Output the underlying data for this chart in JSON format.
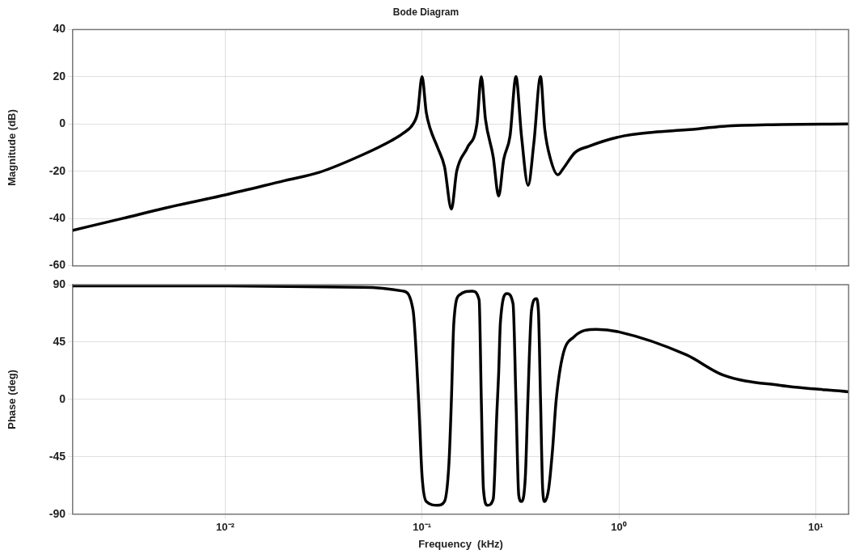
{
  "chart_data": [
    {
      "type": "line",
      "title": "Bode Diagram",
      "ylabel": "Magnitude (dB)",
      "xlim": [
        0.00168,
        14.7
      ],
      "xticks": [
        {
          "value": 0.01,
          "label": null
        },
        {
          "value": 0.1,
          "label": null
        },
        {
          "value": 1,
          "label": null
        },
        {
          "value": 10,
          "label": null
        }
      ],
      "ylim": [
        -60,
        40
      ],
      "yticks": [
        -60,
        -40,
        -20,
        0,
        20,
        40
      ],
      "log": "x",
      "grid": true,
      "marker": "none",
      "line_style": "solid",
      "tick_labels": "y",
      "series": [
        {
          "color": "#000000",
          "x": [
            0.00168,
            0.003,
            0.005,
            0.01,
            0.02,
            0.03,
            0.05,
            0.07,
            0.08,
            0.09,
            0.095,
            0.1,
            0.105,
            0.11,
            0.12,
            0.13,
            0.141,
            0.15,
            0.17,
            0.19,
            0.2,
            0.21,
            0.23,
            0.245,
            0.26,
            0.28,
            0.3,
            0.32,
            0.346,
            0.37,
            0.4,
            0.42,
            0.45,
            0.49,
            0.52,
            0.6,
            0.7,
            1,
            1.5,
            2.2,
            3.4,
            6,
            14.7
          ],
          "values": [
            -45,
            -40,
            -35.5,
            -30,
            -24,
            -20.5,
            -13,
            -7,
            -4,
            0,
            5,
            20,
            5,
            -2,
            -10,
            -18,
            -36,
            -20,
            -10,
            0,
            20,
            2,
            -14,
            -30.5,
            -15,
            -5,
            20,
            -5,
            -26,
            -8,
            20,
            -2,
            -15,
            -21.5,
            -19,
            -12,
            -9.5,
            -5.5,
            -3.5,
            -2.5,
            -1,
            -0.3,
            0
          ]
        }
      ]
    },
    {
      "type": "line",
      "xlabel": "Frequency  (kHz)",
      "ylabel": "Phase (deg)",
      "xlim": [
        0.00168,
        14.7
      ],
      "xticks": [
        {
          "value": 0.01,
          "label": "10⁻²"
        },
        {
          "value": 0.1,
          "label": "10⁻¹"
        },
        {
          "value": 1,
          "label": "10⁰"
        },
        {
          "value": 10,
          "label": "10¹"
        }
      ],
      "ylim": [
        -90,
        90
      ],
      "yticks": [
        -90,
        -45,
        0,
        45,
        90
      ],
      "log": "x",
      "grid": true,
      "marker": "none",
      "line_style": "solid",
      "series": [
        {
          "color": "#000000",
          "x": [
            0.00168,
            0.01,
            0.05,
            0.08,
            0.09,
            0.096,
            0.1,
            0.105,
            0.12,
            0.13,
            0.137,
            0.141,
            0.145,
            0.155,
            0.18,
            0.195,
            0.2,
            0.205,
            0.215,
            0.23,
            0.24,
            0.245,
            0.25,
            0.27,
            0.29,
            0.3,
            0.31,
            0.32,
            0.335,
            0.345,
            0.36,
            0.38,
            0.39,
            0.4,
            0.41,
            0.42,
            0.44,
            0.46,
            0.48,
            0.52,
            0.59,
            0.77,
            1,
            2.2,
            3.4,
            6.6,
            14.7
          ],
          "values": [
            89,
            89,
            88,
            85,
            70,
            0,
            -60,
            -80,
            -83,
            -80,
            -50,
            0,
            60,
            82,
            85,
            78,
            0,
            -70,
            -83,
            -78,
            -10,
            20,
            60,
            83,
            75,
            0,
            -75,
            -80,
            -60,
            0,
            70,
            79,
            70,
            0,
            -70,
            -80,
            -70,
            -40,
            -1,
            35,
            49,
            55,
            53,
            35,
            19,
            11,
            6
          ]
        }
      ]
    }
  ]
}
